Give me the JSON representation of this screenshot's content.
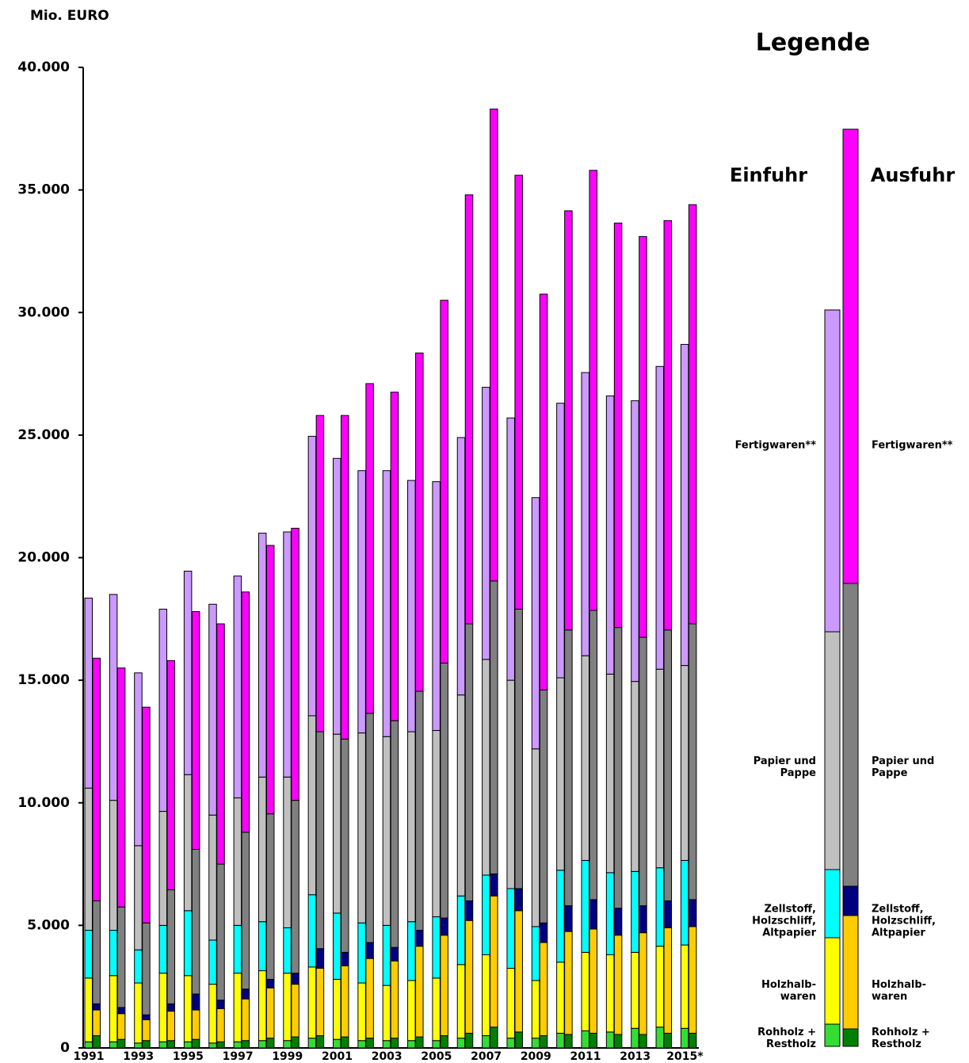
{
  "chart_data": {
    "type": "stacked_bar",
    "y_axis_label": "Mio. EURO",
    "legend_title": "Legende",
    "categories": [
      "1991",
      null,
      "1993",
      null,
      "1995",
      null,
      "1997",
      null,
      "1999",
      null,
      "2001",
      null,
      "2003",
      null,
      "2005",
      null,
      "2007",
      null,
      "2009",
      null,
      "2011",
      null,
      "2013",
      null,
      "2015*"
    ],
    "ylim": [
      0,
      40000
    ],
    "yticks": [
      0,
      {
        "value": 5000,
        "label": "5.000"
      },
      {
        "value": 10000,
        "label": "10.000"
      },
      {
        "value": 15000,
        "label": "15.000"
      },
      {
        "value": 20000,
        "label": "20.000"
      },
      {
        "value": 25000,
        "label": "25.000"
      },
      {
        "value": 30000,
        "label": "30.000"
      },
      {
        "value": 35000,
        "label": "35.000"
      },
      {
        "value": 40000,
        "label": "40.000"
      }
    ],
    "groups": [
      {
        "name": "Einfuhr",
        "series": [
          {
            "name": "Rohholz +\nRestholz",
            "color": "#33dd33",
            "values": [
              250,
              250,
              200,
              250,
              250,
              200,
              250,
              300,
              300,
              400,
              350,
              300,
              300,
              300,
              300,
              400,
              500,
              400,
              400,
              600,
              700,
              650,
              800,
              850,
              800
            ]
          },
          {
            "name": "Holzhalb-\nwaren",
            "color": "#ffff00",
            "values": [
              2600,
              2700,
              2450,
              2800,
              2700,
              2400,
              2800,
              2850,
              2750,
              2900,
              2450,
              2350,
              2250,
              2450,
              2550,
              3000,
              3300,
              2850,
              2350,
              2900,
              3200,
              3150,
              3100,
              3300,
              3400
            ]
          },
          {
            "name": "Zellstoff,\nHolzschliff,\nAltpapier",
            "color": "#00ffff",
            "values": [
              1950,
              1850,
              1350,
              1950,
              2650,
              1800,
              1950,
              2000,
              1850,
              2950,
              2700,
              2450,
              2450,
              2400,
              2500,
              2800,
              3250,
              3250,
              2200,
              3750,
              3750,
              3350,
              3300,
              3200,
              3450
            ]
          },
          {
            "name": "Papier und\nPappe",
            "color": "#c0c0c0",
            "values": [
              5800,
              5300,
              4250,
              4650,
              5550,
              5100,
              5200,
              5900,
              6150,
              7300,
              7300,
              7750,
              7700,
              7750,
              7600,
              8200,
              8800,
              8500,
              7250,
              7850,
              8350,
              8100,
              7750,
              8100,
              7950
            ]
          },
          {
            "name": "Fertigwaren**",
            "color": "#cc99ff",
            "values": [
              7750,
              8400,
              7050,
              8250,
              8300,
              8600,
              9050,
              9950,
              10000,
              11400,
              11250,
              10700,
              10850,
              10250,
              10150,
              10500,
              11100,
              10700,
              10250,
              11200,
              11550,
              11350,
              11450,
              12350,
              13100
            ]
          }
        ]
      },
      {
        "name": "Ausfuhr",
        "series": [
          {
            "name": "Rohholz +\nRestholz",
            "color": "#008000",
            "values": [
              500,
              350,
              300,
              300,
              350,
              250,
              300,
              400,
              450,
              500,
              450,
              400,
              400,
              450,
              500,
              600,
              850,
              650,
              500,
              550,
              600,
              550,
              550,
              600,
              600
            ]
          },
          {
            "name": "Holzhalb-\nwaren",
            "color": "#ffcc00",
            "values": [
              1050,
              1050,
              850,
              1200,
              1200,
              1350,
              1700,
              2050,
              2150,
              2750,
              2900,
              3250,
              3150,
              3700,
              4100,
              4600,
              5350,
              4950,
              3800,
              4200,
              4250,
              4050,
              4150,
              4300,
              4350
            ]
          },
          {
            "name": "Zellstoff,\nHolzschliff,\nAltpapier",
            "color": "#000080",
            "values": [
              250,
              250,
              200,
              300,
              650,
              350,
              400,
              350,
              450,
              800,
              550,
              650,
              550,
              650,
              700,
              800,
              900,
              900,
              800,
              1050,
              1200,
              1100,
              1100,
              1100,
              1100
            ]
          },
          {
            "name": "Papier und\nPappe",
            "color": "#808080",
            "values": [
              4200,
              4100,
              3750,
              4650,
              5900,
              5550,
              6400,
              6750,
              7050,
              8850,
              8700,
              9350,
              9250,
              9750,
              10400,
              11300,
              11950,
              11400,
              9500,
              11250,
              11800,
              11450,
              10950,
              11050,
              11250
            ]
          },
          {
            "name": "Fertigwaren**",
            "color": "#ff00ff",
            "values": [
              9900,
              9750,
              8800,
              9350,
              9700,
              9800,
              9800,
              10950,
              11100,
              12900,
              13200,
              13450,
              13400,
              13800,
              14800,
              17500,
              19250,
              17700,
              16150,
              17100,
              17950,
              16500,
              16350,
              16700,
              17100
            ]
          }
        ]
      }
    ]
  }
}
